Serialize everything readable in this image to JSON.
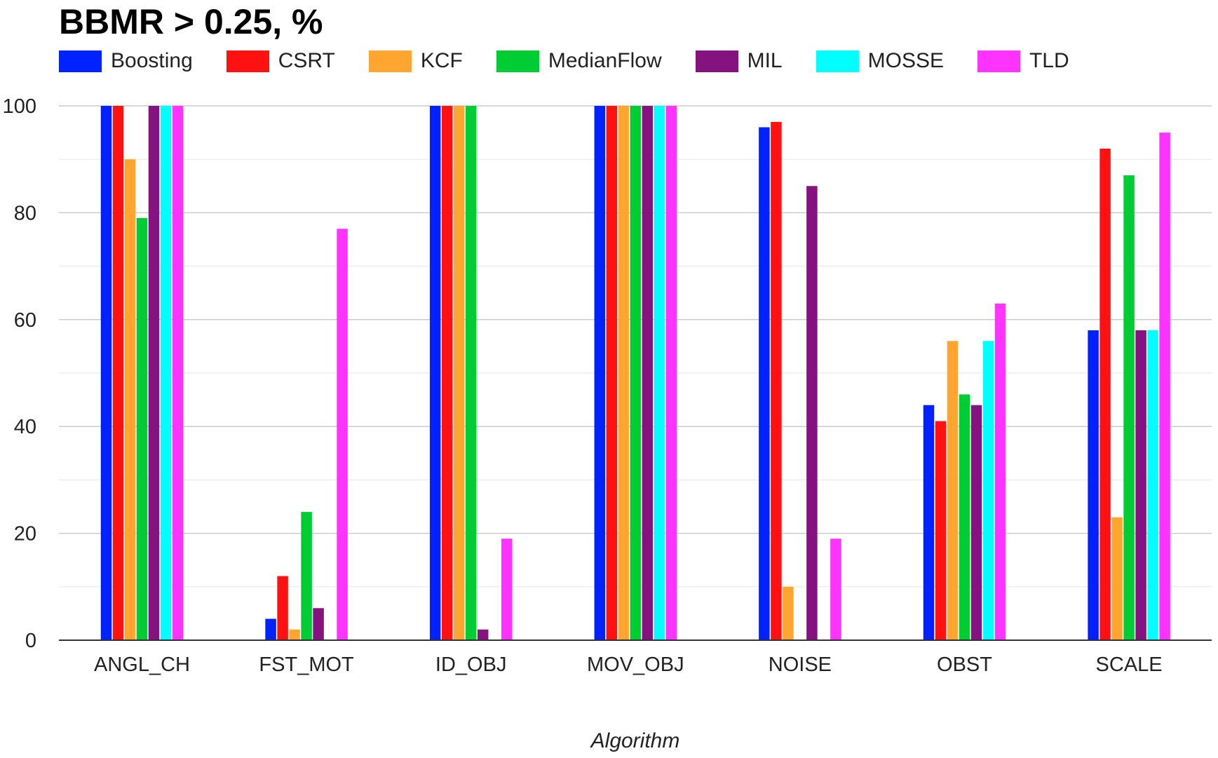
{
  "chart_data": {
    "type": "bar",
    "title": "BBMR > 0.25, %",
    "xlabel": "Algorithm",
    "ylabel": "",
    "ylim": [
      0,
      100
    ],
    "yticks": [
      0,
      20,
      40,
      60,
      80,
      100
    ],
    "grid": true,
    "legend_position": "top",
    "categories": [
      "ANGL_CH",
      "FST_MOT",
      "ID_OBJ",
      "MOV_OBJ",
      "NOISE",
      "OBST",
      "SCALE"
    ],
    "series": [
      {
        "name": "Boosting",
        "color": "#0022ff",
        "values": [
          100,
          4,
          100,
          100,
          96,
          44,
          58
        ]
      },
      {
        "name": "CSRT",
        "color": "#ff1111",
        "values": [
          100,
          12,
          100,
          100,
          97,
          41,
          92
        ]
      },
      {
        "name": "KCF",
        "color": "#ffa530",
        "values": [
          90,
          2,
          100,
          100,
          10,
          56,
          23
        ]
      },
      {
        "name": "MedianFlow",
        "color": "#00cc33",
        "values": [
          79,
          24,
          100,
          100,
          0,
          46,
          87
        ]
      },
      {
        "name": "MIL",
        "color": "#84137f",
        "values": [
          100,
          6,
          2,
          100,
          85,
          44,
          58
        ]
      },
      {
        "name": "MOSSE",
        "color": "#00ffff",
        "values": [
          100,
          0,
          0,
          100,
          0,
          56,
          58
        ]
      },
      {
        "name": "TLD",
        "color": "#ff33ff",
        "values": [
          100,
          77,
          19,
          100,
          19,
          63,
          95
        ]
      }
    ]
  }
}
